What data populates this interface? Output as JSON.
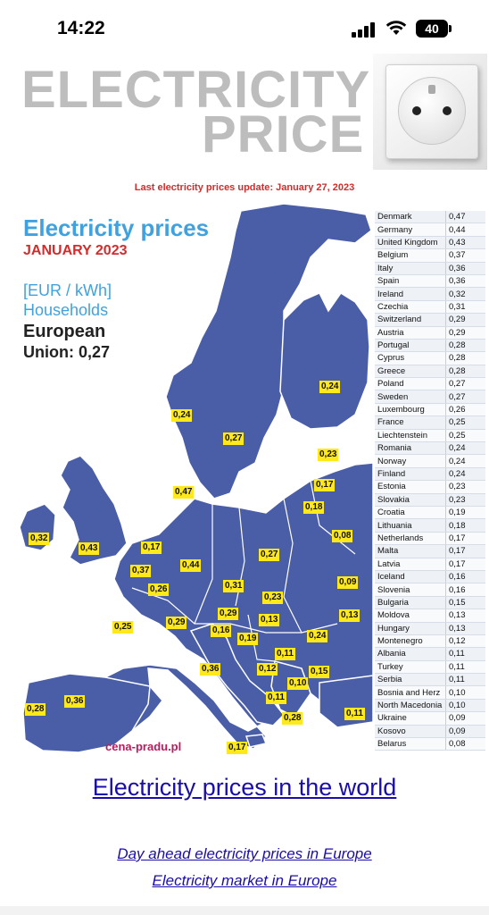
{
  "status_bar": {
    "time": "14:22",
    "battery": "40"
  },
  "header": {
    "title_line1": "ELECTRICITY",
    "title_line2": "PRICE",
    "update_note": "Last electricity prices update: January 27, 2023"
  },
  "map": {
    "title": "Electricity prices",
    "month": "JANUARY 2023",
    "unit_line1": "[EUR / kWh]",
    "unit_line2": "Households",
    "eu_line1": "European",
    "eu_line2": "Union: 0,27",
    "credit": "cena-pradu.pl",
    "colors": {
      "land": "#4a5ea8",
      "label_bg": "#ffe91a",
      "title": "#3fa2df",
      "month": "#d52b2b"
    },
    "labels": [
      {
        "value": "0,24"
      },
      {
        "value": "0,24"
      },
      {
        "value": "0,27"
      },
      {
        "value": "0,23"
      },
      {
        "value": "0,47"
      },
      {
        "value": "0,17"
      },
      {
        "value": "0,18"
      },
      {
        "value": "0,32"
      },
      {
        "value": "0,43"
      },
      {
        "value": "0,17"
      },
      {
        "value": "0,08"
      },
      {
        "value": "0,37"
      },
      {
        "value": "0,44"
      },
      {
        "value": "0,27"
      },
      {
        "value": "0,26"
      },
      {
        "value": "0,31"
      },
      {
        "value": "0,09"
      },
      {
        "value": "0,23"
      },
      {
        "value": "0,29"
      },
      {
        "value": "0,13"
      },
      {
        "value": "0,25"
      },
      {
        "value": "0,29"
      },
      {
        "value": "0,13"
      },
      {
        "value": "0,16"
      },
      {
        "value": "0,19"
      },
      {
        "value": "0,24"
      },
      {
        "value": "0,11"
      },
      {
        "value": "0,36"
      },
      {
        "value": "0,12"
      },
      {
        "value": "0,15"
      },
      {
        "value": "0,10"
      },
      {
        "value": "0,36"
      },
      {
        "value": "0,28"
      },
      {
        "value": "0,11"
      },
      {
        "value": "0,28"
      },
      {
        "value": "0,11"
      },
      {
        "value": "0,17"
      }
    ]
  },
  "table": {
    "rows": [
      {
        "country": "Denmark",
        "price": "0,47"
      },
      {
        "country": "Germany",
        "price": "0,44"
      },
      {
        "country": "United Kingdom",
        "price": "0,43"
      },
      {
        "country": "Belgium",
        "price": "0,37"
      },
      {
        "country": "Italy",
        "price": "0,36"
      },
      {
        "country": "Spain",
        "price": "0,36"
      },
      {
        "country": "Ireland",
        "price": "0,32"
      },
      {
        "country": "Czechia",
        "price": "0,31"
      },
      {
        "country": "Switzerland",
        "price": "0,29"
      },
      {
        "country": "Austria",
        "price": "0,29"
      },
      {
        "country": "Portugal",
        "price": "0,28"
      },
      {
        "country": "Cyprus",
        "price": "0,28"
      },
      {
        "country": "Greece",
        "price": "0,28"
      },
      {
        "country": "Poland",
        "price": "0,27"
      },
      {
        "country": "Sweden",
        "price": "0,27"
      },
      {
        "country": "Luxembourg",
        "price": "0,26"
      },
      {
        "country": "France",
        "price": "0,25"
      },
      {
        "country": "Liechtenstein",
        "price": "0,25"
      },
      {
        "country": "Romania",
        "price": "0,24"
      },
      {
        "country": "Norway",
        "price": "0,24"
      },
      {
        "country": "Finland",
        "price": "0,24"
      },
      {
        "country": "Estonia",
        "price": "0,23"
      },
      {
        "country": "Slovakia",
        "price": "0,23"
      },
      {
        "country": "Croatia",
        "price": "0,19"
      },
      {
        "country": "Lithuania",
        "price": "0,18"
      },
      {
        "country": "Netherlands",
        "price": "0,17"
      },
      {
        "country": "Malta",
        "price": "0,17"
      },
      {
        "country": "Latvia",
        "price": "0,17"
      },
      {
        "country": "Iceland",
        "price": "0,16"
      },
      {
        "country": "Slovenia",
        "price": "0,16"
      },
      {
        "country": "Bulgaria",
        "price": "0,15"
      },
      {
        "country": "Moldova",
        "price": "0,13"
      },
      {
        "country": "Hungary",
        "price": "0,13"
      },
      {
        "country": "Montenegro",
        "price": "0,12"
      },
      {
        "country": "Albania",
        "price": "0,11"
      },
      {
        "country": "Turkey",
        "price": "0,11"
      },
      {
        "country": "Serbia",
        "price": "0,11"
      },
      {
        "country": "Bosnia and Herz",
        "price": "0,10"
      },
      {
        "country": "North Macedonia",
        "price": "0,10"
      },
      {
        "country": "Ukraine",
        "price": "0,09"
      },
      {
        "country": "Kosovo",
        "price": "0,09"
      },
      {
        "country": "Belarus",
        "price": "0,08"
      }
    ]
  },
  "links": {
    "world": "Electricity prices in the world",
    "day_ahead": "Day ahead electricity prices in Europe",
    "market": "Electricity market in Europe"
  }
}
